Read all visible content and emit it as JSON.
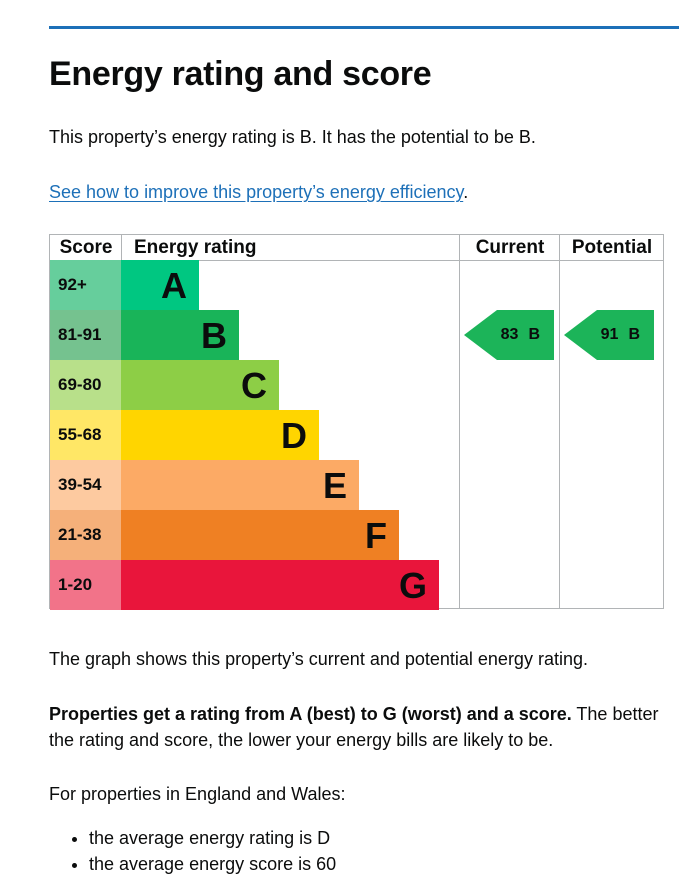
{
  "heading": "Energy rating and score",
  "intro": "This property’s energy rating is B. It has the potential to be B.",
  "improve_link": "See how to improve this property’s energy efficiency",
  "improve_link_suffix": ".",
  "chart_data": {
    "type": "table",
    "headers": {
      "score": "Score",
      "energy": "Energy rating",
      "current": "Current",
      "potential": "Potential"
    },
    "bands": [
      {
        "range": "92+",
        "letter": "A",
        "color": "#00c781",
        "score_bg": "#66ce9c"
      },
      {
        "range": "81-91",
        "letter": "B",
        "color": "#19b459",
        "score_bg": "#75c28f"
      },
      {
        "range": "69-80",
        "letter": "C",
        "color": "#8dce46",
        "score_bg": "#b8e08a"
      },
      {
        "range": "55-68",
        "letter": "D",
        "color": "#ffd500",
        "score_bg": "#ffe766"
      },
      {
        "range": "39-54",
        "letter": "E",
        "color": "#fcaa65",
        "score_bg": "#fdcaa0"
      },
      {
        "range": "21-38",
        "letter": "F",
        "color": "#ef8023",
        "score_bg": "#f5b07a"
      },
      {
        "range": "1-20",
        "letter": "G",
        "color": "#e9153b",
        "score_bg": "#f27389"
      }
    ],
    "current": {
      "score": "83",
      "band": "B",
      "band_index": 1,
      "color": "#1cb459"
    },
    "potential": {
      "score": "91",
      "band": "B",
      "band_index": 1,
      "color": "#1cb459"
    }
  },
  "caption": "The graph shows this property’s current and potential energy rating.",
  "properties_bold": "Properties get a rating from A (best) to G (worst) and a score.",
  "properties_rest": " The better the rating and score, the lower your energy bills are likely to be.",
  "england_wales": "For properties in England and Wales:",
  "averages": [
    "the average energy rating is D",
    "the average energy score is 60"
  ]
}
